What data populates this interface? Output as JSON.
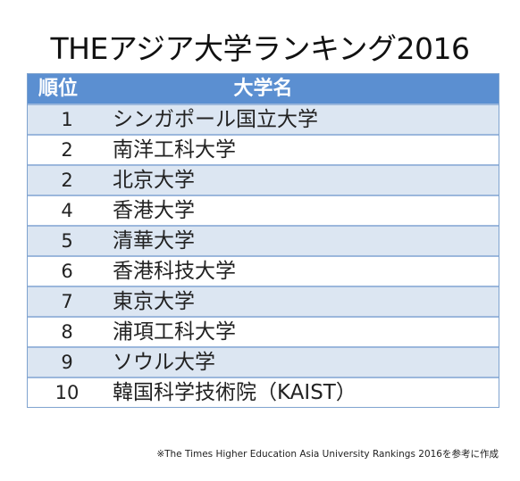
{
  "title": "THEアジア大学ランキング2016",
  "table": {
    "header": {
      "rank": "順位",
      "name": "大学名"
    },
    "rows": [
      {
        "rank": "1",
        "name": "シンガポール国立大学"
      },
      {
        "rank": "2",
        "name": "南洋工科大学"
      },
      {
        "rank": "2",
        "name": "北京大学"
      },
      {
        "rank": "4",
        "name": "香港大学"
      },
      {
        "rank": "5",
        "name": "清華大学"
      },
      {
        "rank": "6",
        "name": "香港科技大学"
      },
      {
        "rank": "7",
        "name": "東京大学"
      },
      {
        "rank": "8",
        "name": "浦項工科大学"
      },
      {
        "rank": "9",
        "name": "ソウル大学"
      },
      {
        "rank": "10",
        "name": "韓国科学技術院（KAIST）"
      }
    ]
  },
  "note": "※The Times Higher Education Asia University Rankings 2016を参考に作成",
  "colors": {
    "header_bg": "#5b8fd1",
    "odd_row_bg": "#dce6f2",
    "even_row_bg": "#ffffff"
  }
}
